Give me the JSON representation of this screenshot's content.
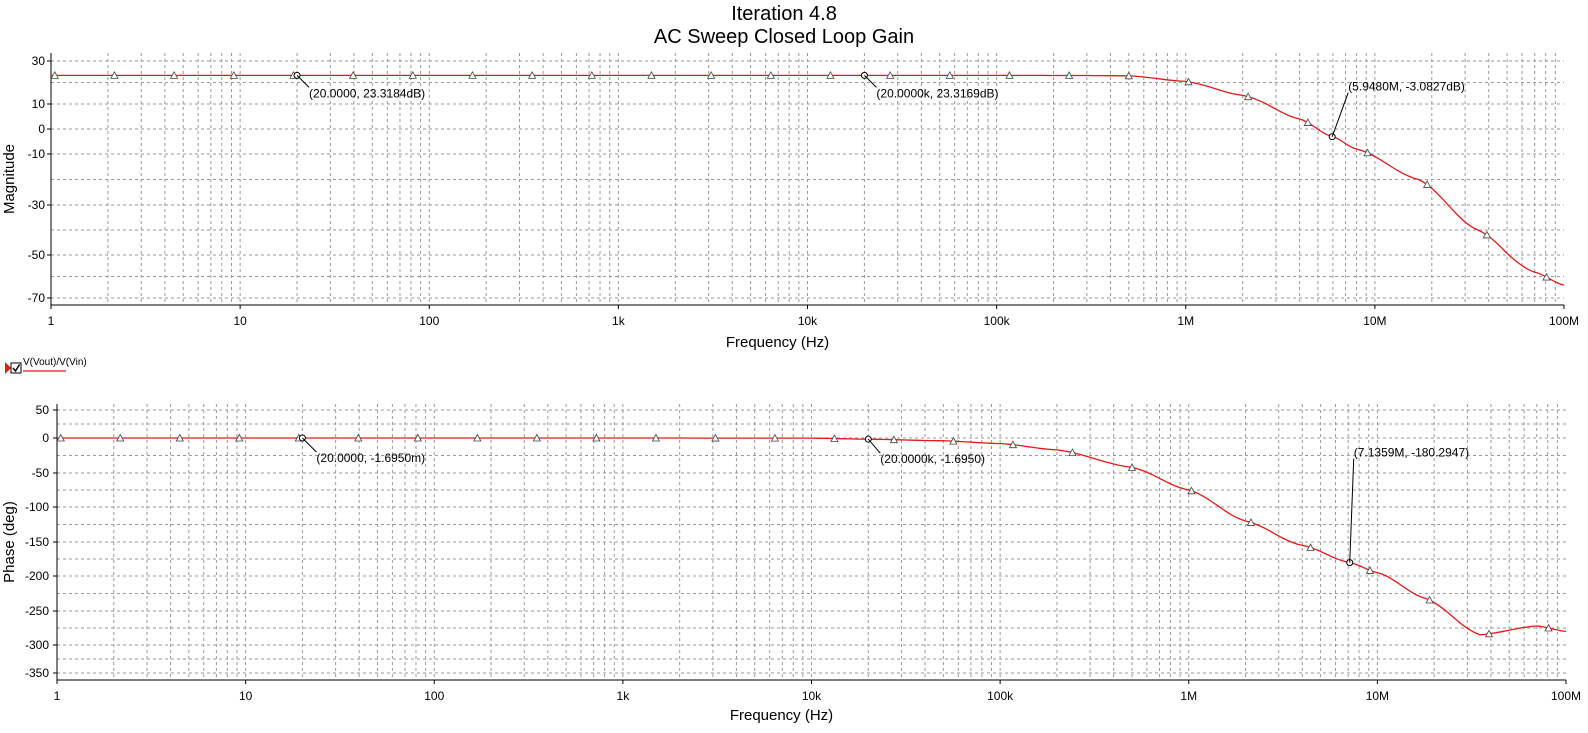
{
  "title": "Iteration 4.8",
  "subtitle": "AC Sweep Closed Loop Gain",
  "legend": {
    "label": "V(Vout)/V(Vin)",
    "color": "#e21a1a"
  },
  "chart_data": [
    {
      "type": "line",
      "xscale": "log",
      "xlabel": "Frequency (Hz)",
      "ylabel": "Magnitude",
      "xlim": [
        1,
        100000000
      ],
      "ylim": [
        -70,
        30
      ],
      "xticks": [
        {
          "v": 1,
          "label": "1"
        },
        {
          "v": 10,
          "label": "10"
        },
        {
          "v": 100,
          "label": "100"
        },
        {
          "v": 1000,
          "label": "1k"
        },
        {
          "v": 10000,
          "label": "10k"
        },
        {
          "v": 100000,
          "label": "100k"
        },
        {
          "v": 1000000,
          "label": "1M"
        },
        {
          "v": 10000000,
          "label": "10M"
        },
        {
          "v": 100000000,
          "label": "100M"
        }
      ],
      "yticks": [
        {
          "v": 30,
          "label": "30"
        },
        {
          "v": 10,
          "label": "10"
        },
        {
          "v": 0,
          "label": "0"
        },
        {
          "v": -10,
          "label": "-10"
        },
        {
          "v": -30,
          "label": "-30"
        },
        {
          "v": -50,
          "label": "-50"
        },
        {
          "v": -70,
          "label": "-70"
        }
      ],
      "series": [
        {
          "color": "#e21a1a",
          "x": [
            1,
            10,
            100,
            1000,
            10000,
            100000,
            300000,
            500000,
            1000000,
            2000000,
            4000000,
            5948000,
            8000000,
            17000000,
            35000000,
            70000000,
            100000000
          ],
          "y": [
            23.32,
            23.32,
            23.32,
            23.32,
            23.32,
            23.32,
            23.25,
            23.1,
            20.5,
            14.0,
            4.0,
            -3.08,
            -8.0,
            -20.0,
            -40.0,
            -58.0,
            -64.0
          ]
        }
      ],
      "annotations": [
        {
          "x": 20,
          "y": 23.3184,
          "label": "(20.0000, 23.3184dB)"
        },
        {
          "x": 20000,
          "y": 23.3169,
          "label": "(20.0000k, 23.3169dB)"
        },
        {
          "x": 5948000,
          "y": -3.0827,
          "label": "(5.9480M, -3.0827dB)"
        }
      ]
    },
    {
      "type": "line",
      "xscale": "log",
      "xlabel": "Frequency (Hz)",
      "ylabel": "Phase (deg)",
      "xlim": [
        1,
        100000000
      ],
      "ylim": [
        -350,
        50
      ],
      "xticks": [
        {
          "v": 1,
          "label": "1"
        },
        {
          "v": 10,
          "label": "10"
        },
        {
          "v": 100,
          "label": "100"
        },
        {
          "v": 1000,
          "label": "1k"
        },
        {
          "v": 10000,
          "label": "10k"
        },
        {
          "v": 100000,
          "label": "100k"
        },
        {
          "v": 1000000,
          "label": "1M"
        },
        {
          "v": 10000000,
          "label": "10M"
        },
        {
          "v": 100000000,
          "label": "100M"
        }
      ],
      "yticks": [
        {
          "v": 50,
          "label": "50"
        },
        {
          "v": 0,
          "label": "0"
        },
        {
          "v": -50,
          "label": "-50"
        },
        {
          "v": -100,
          "label": "-100"
        },
        {
          "v": -150,
          "label": "-150"
        },
        {
          "v": -200,
          "label": "-200"
        },
        {
          "v": -250,
          "label": "-250"
        },
        {
          "v": -300,
          "label": "-300"
        },
        {
          "v": -350,
          "label": "-350"
        }
      ],
      "series": [
        {
          "color": "#e21a1a",
          "x": [
            1,
            10,
            100,
            1000,
            10000,
            20000,
            50000,
            100000,
            200000,
            500000,
            1000000,
            2000000,
            4000000,
            7136000,
            10000000,
            18000000,
            35000000,
            70000000,
            100000000
          ],
          "y": [
            0,
            0,
            0,
            0,
            -0.2,
            -1.7,
            -4,
            -8,
            -17,
            -42,
            -75,
            -120,
            -155,
            -180.3,
            -195,
            -232,
            -285,
            -272,
            -280
          ]
        }
      ],
      "annotations": [
        {
          "x": 20,
          "y": -0.0017,
          "label": "(20.0000, -1.6950m)"
        },
        {
          "x": 20000,
          "y": -1.695,
          "label": "(20.0000k, -1.6950)"
        },
        {
          "x": 7136000,
          "y": -180.2947,
          "label": "(7.1359M, -180.2947)"
        }
      ]
    }
  ]
}
